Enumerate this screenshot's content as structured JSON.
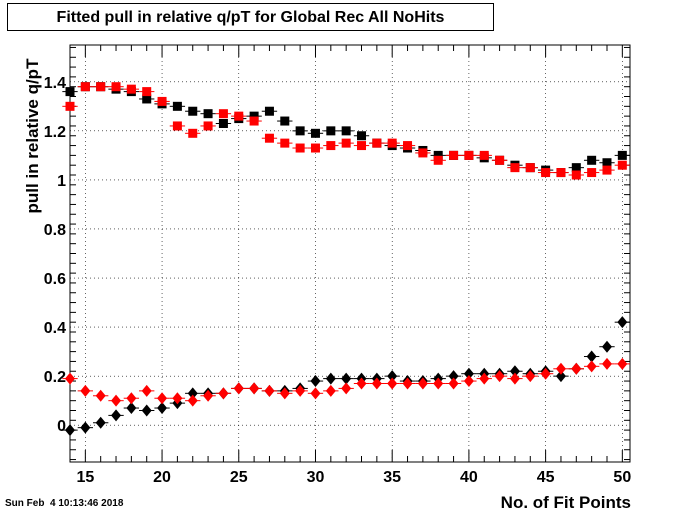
{
  "chart_data": {
    "type": "scatter",
    "title": "Fitted pull in relative q/pT for Global Rec All NoHits",
    "xlabel": "No. of Fit Points",
    "ylabel": "pull in relative q/pT",
    "xlim": [
      14,
      50.5
    ],
    "ylim": [
      -0.15,
      1.55
    ],
    "xticks": [
      15,
      20,
      25,
      30,
      35,
      40,
      45,
      50
    ],
    "yticks": [
      0,
      0.2,
      0.4,
      0.6,
      0.8,
      1,
      1.2,
      1.4
    ],
    "ytick_labels": [
      "0",
      "0.2",
      "0.4",
      "0.6",
      "0.8",
      "1",
      "1.2",
      "1.4"
    ],
    "grid": true,
    "x": [
      14,
      15,
      16,
      17,
      18,
      19,
      20,
      21,
      22,
      23,
      24,
      25,
      26,
      27,
      28,
      29,
      30,
      31,
      32,
      33,
      34,
      35,
      36,
      37,
      38,
      39,
      40,
      41,
      42,
      43,
      44,
      45,
      46,
      47,
      48,
      49,
      50
    ],
    "series": [
      {
        "marker": "square",
        "color": "#000000",
        "values": [
          1.36,
          1.38,
          1.38,
          1.37,
          1.36,
          1.33,
          1.31,
          1.3,
          1.28,
          1.27,
          1.23,
          1.25,
          1.26,
          1.28,
          1.24,
          1.2,
          1.19,
          1.2,
          1.2,
          1.18,
          1.15,
          1.14,
          1.13,
          1.12,
          1.1,
          1.1,
          1.1,
          1.09,
          1.08,
          1.06,
          1.05,
          1.04,
          1.03,
          1.05,
          1.08,
          1.07,
          1.1
        ]
      },
      {
        "marker": "square",
        "color": "#ff0000",
        "values": [
          1.3,
          1.38,
          1.38,
          1.38,
          1.37,
          1.36,
          1.32,
          1.22,
          1.19,
          1.22,
          1.27,
          1.26,
          1.24,
          1.17,
          1.15,
          1.13,
          1.13,
          1.14,
          1.15,
          1.14,
          1.15,
          1.15,
          1.14,
          1.11,
          1.08,
          1.1,
          1.1,
          1.1,
          1.08,
          1.05,
          1.05,
          1.03,
          1.03,
          1.02,
          1.03,
          1.04,
          1.06
        ]
      },
      {
        "marker": "diamond",
        "color": "#000000",
        "values": [
          -0.02,
          -0.01,
          0.01,
          0.04,
          0.07,
          0.06,
          0.07,
          0.09,
          0.13,
          0.13,
          0.13,
          0.15,
          0.15,
          0.14,
          0.14,
          0.15,
          0.18,
          0.19,
          0.19,
          0.19,
          0.19,
          0.2,
          0.18,
          0.18,
          0.19,
          0.2,
          0.21,
          0.21,
          0.21,
          0.22,
          0.21,
          0.22,
          0.2,
          0.23,
          0.28,
          0.32,
          0.42
        ]
      },
      {
        "marker": "diamond",
        "color": "#ff0000",
        "values": [
          0.19,
          0.14,
          0.12,
          0.1,
          0.11,
          0.14,
          0.11,
          0.11,
          0.1,
          0.12,
          0.13,
          0.15,
          0.15,
          0.14,
          0.13,
          0.14,
          0.13,
          0.14,
          0.15,
          0.17,
          0.17,
          0.17,
          0.17,
          0.17,
          0.17,
          0.17,
          0.18,
          0.19,
          0.2,
          0.19,
          0.2,
          0.21,
          0.23,
          0.23,
          0.24,
          0.25,
          0.25
        ]
      }
    ]
  },
  "footer": {
    "timestamp": "Sun Feb  4 10:13:46 2018"
  }
}
